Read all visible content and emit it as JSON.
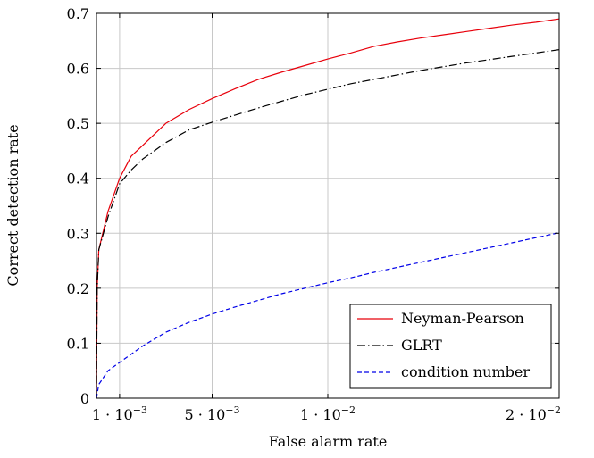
{
  "chart_data": {
    "type": "line",
    "xlabel": "False alarm rate",
    "ylabel": "Correct detection rate",
    "xlim": [
      0.0,
      0.02
    ],
    "ylim": [
      0,
      0.7
    ],
    "grid": true,
    "legend_position": "bottom-right",
    "x_ticks": [
      {
        "value": 0.001,
        "mantissa": "1",
        "exponent": "−3"
      },
      {
        "value": 0.005,
        "mantissa": "5",
        "exponent": "−3"
      },
      {
        "value": 0.01,
        "mantissa": "1",
        "exponent": "−2"
      },
      {
        "value": 0.02,
        "mantissa": "2",
        "exponent": "−2"
      }
    ],
    "y_ticks": [
      {
        "value": 0,
        "label": "0"
      },
      {
        "value": 0.1,
        "label": "0.1"
      },
      {
        "value": 0.2,
        "label": "0.2"
      },
      {
        "value": 0.3,
        "label": "0.3"
      },
      {
        "value": 0.4,
        "label": "0.4"
      },
      {
        "value": 0.5,
        "label": "0.5"
      },
      {
        "value": 0.6,
        "label": "0.6"
      },
      {
        "value": 0.7,
        "label": "0.7"
      }
    ],
    "series": [
      {
        "name": "Neyman-Pearson",
        "color": "#e8000b",
        "dash": "solid",
        "points": [
          [
            0.0,
            0.0
          ],
          [
            3e-05,
            0.2
          ],
          [
            0.0001,
            0.27
          ],
          [
            0.0005,
            0.34
          ],
          [
            0.001,
            0.4
          ],
          [
            0.0015,
            0.44
          ],
          [
            0.002,
            0.46
          ],
          [
            0.003,
            0.5
          ],
          [
            0.004,
            0.525
          ],
          [
            0.005,
            0.545
          ],
          [
            0.006,
            0.563
          ],
          [
            0.007,
            0.58
          ],
          [
            0.008,
            0.593
          ],
          [
            0.009,
            0.605
          ],
          [
            0.01,
            0.617
          ],
          [
            0.011,
            0.628
          ],
          [
            0.012,
            0.64
          ],
          [
            0.013,
            0.648
          ],
          [
            0.014,
            0.655
          ],
          [
            0.015,
            0.661
          ],
          [
            0.016,
            0.667
          ],
          [
            0.017,
            0.673
          ],
          [
            0.018,
            0.679
          ],
          [
            0.019,
            0.684
          ],
          [
            0.02,
            0.69
          ]
        ]
      },
      {
        "name": "GLRT",
        "color": "#000000",
        "dash": "dashdot",
        "points": [
          [
            0.0,
            0.0
          ],
          [
            3e-05,
            0.2
          ],
          [
            0.0001,
            0.27
          ],
          [
            0.0005,
            0.33
          ],
          [
            0.001,
            0.39
          ],
          [
            0.0015,
            0.415
          ],
          [
            0.002,
            0.435
          ],
          [
            0.003,
            0.465
          ],
          [
            0.004,
            0.488
          ],
          [
            0.005,
            0.502
          ],
          [
            0.006,
            0.515
          ],
          [
            0.007,
            0.528
          ],
          [
            0.008,
            0.54
          ],
          [
            0.009,
            0.552
          ],
          [
            0.01,
            0.562
          ],
          [
            0.011,
            0.572
          ],
          [
            0.012,
            0.58
          ],
          [
            0.013,
            0.588
          ],
          [
            0.014,
            0.596
          ],
          [
            0.015,
            0.603
          ],
          [
            0.016,
            0.61
          ],
          [
            0.017,
            0.616
          ],
          [
            0.018,
            0.622
          ],
          [
            0.019,
            0.628
          ],
          [
            0.02,
            0.634
          ]
        ]
      },
      {
        "name": "condition number",
        "color": "#0000e8",
        "dash": "dashed",
        "points": [
          [
            0.0,
            0.0
          ],
          [
            0.0001,
            0.025
          ],
          [
            0.0005,
            0.05
          ],
          [
            0.001,
            0.065
          ],
          [
            0.002,
            0.095
          ],
          [
            0.003,
            0.12
          ],
          [
            0.004,
            0.138
          ],
          [
            0.005,
            0.153
          ],
          [
            0.006,
            0.166
          ],
          [
            0.007,
            0.178
          ],
          [
            0.008,
            0.19
          ],
          [
            0.009,
            0.2
          ],
          [
            0.01,
            0.21
          ],
          [
            0.011,
            0.219
          ],
          [
            0.012,
            0.229
          ],
          [
            0.013,
            0.238
          ],
          [
            0.014,
            0.247
          ],
          [
            0.015,
            0.256
          ],
          [
            0.016,
            0.265
          ],
          [
            0.017,
            0.274
          ],
          [
            0.018,
            0.283
          ],
          [
            0.019,
            0.292
          ],
          [
            0.02,
            0.301
          ]
        ]
      }
    ]
  }
}
